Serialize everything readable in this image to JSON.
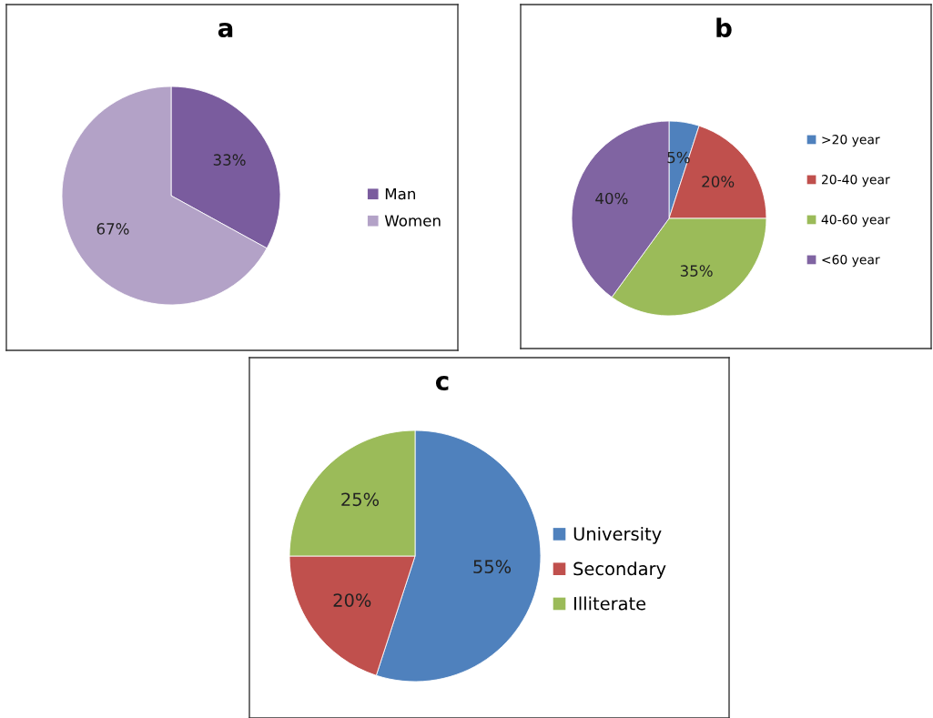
{
  "chart_data": [
    {
      "type": "pie",
      "title": "a",
      "categories": [
        "Man",
        "Women"
      ],
      "values": [
        33,
        67
      ],
      "colors": [
        "#7a5c9e",
        "#b3a2c7"
      ],
      "value_labels": [
        "33%",
        "67%"
      ],
      "legend": "right"
    },
    {
      "type": "pie",
      "title": "b",
      "categories": [
        ">20 year",
        "20-40 year",
        "40-60 year",
        "<60 year"
      ],
      "values": [
        5,
        20,
        35,
        40
      ],
      "colors": [
        "#4f81bd",
        "#c0504d",
        "#9bbb59",
        "#8064a2"
      ],
      "value_labels": [
        "5%",
        "20%",
        "35%",
        "40%"
      ],
      "legend": "right"
    },
    {
      "type": "pie",
      "title": "c",
      "categories": [
        "University",
        "Secondary",
        "Illiterate"
      ],
      "values": [
        55,
        20,
        25
      ],
      "colors": [
        "#4f81bd",
        "#c0504d",
        "#9bbb59"
      ],
      "value_labels": [
        "55%",
        "20%",
        "25%"
      ],
      "legend": "right"
    }
  ]
}
